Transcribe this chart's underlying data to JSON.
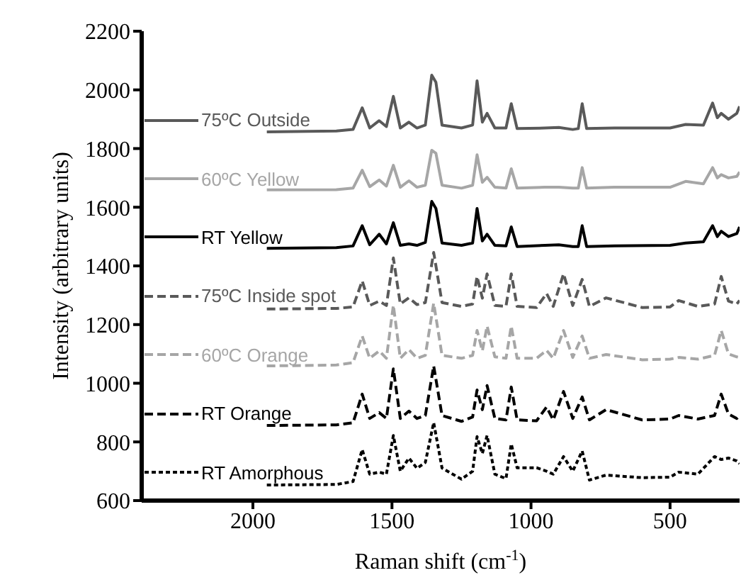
{
  "chart_data": {
    "type": "line",
    "xlabel": "Raman shift (cm$^{-1}$)",
    "ylabel": "Intensity (arbitrary units)",
    "xlim": [
      2400,
      250
    ],
    "xticks": [
      2000,
      1500,
      1000,
      500
    ],
    "ylim": [
      600,
      2200
    ],
    "yticks": [
      600,
      800,
      1000,
      1200,
      1400,
      1600,
      1800,
      2000,
      2200
    ],
    "grid": false,
    "legend": "left",
    "marker": "none",
    "series": [
      {
        "name": "75ºC Outside",
        "color": "#595959",
        "line_style": "solid",
        "x": [
          1950,
          1700,
          1640,
          1607,
          1580,
          1546,
          1520,
          1495,
          1470,
          1439,
          1410,
          1380,
          1357,
          1342,
          1320,
          1250,
          1210,
          1194,
          1175,
          1158,
          1130,
          1090,
          1071,
          1050,
          950,
          900,
          850,
          830,
          816,
          800,
          700,
          500,
          444,
          380,
          347,
          330,
          316,
          290,
          260,
          250
        ],
        "values": [
          1857,
          1860,
          1865,
          1939,
          1870,
          1895,
          1875,
          1978,
          1870,
          1890,
          1870,
          1880,
          2050,
          2026,
          1880,
          1870,
          1880,
          2031,
          1890,
          1920,
          1870,
          1870,
          1953,
          1868,
          1870,
          1872,
          1865,
          1868,
          1953,
          1868,
          1870,
          1870,
          1882,
          1880,
          1955,
          1905,
          1920,
          1900,
          1920,
          1944
        ]
      },
      {
        "name": "60ºC Yellow",
        "color": "#a6a6a6",
        "line_style": "solid",
        "x": [
          1950,
          1700,
          1640,
          1607,
          1580,
          1546,
          1520,
          1495,
          1470,
          1439,
          1410,
          1380,
          1357,
          1342,
          1320,
          1250,
          1210,
          1194,
          1175,
          1158,
          1130,
          1090,
          1071,
          1050,
          950,
          900,
          850,
          830,
          816,
          800,
          700,
          500,
          444,
          380,
          347,
          330,
          316,
          290,
          260,
          250
        ],
        "values": [
          1659,
          1660,
          1665,
          1726,
          1670,
          1693,
          1672,
          1743,
          1668,
          1690,
          1668,
          1675,
          1794,
          1784,
          1675,
          1665,
          1675,
          1779,
          1685,
          1702,
          1668,
          1665,
          1731,
          1665,
          1668,
          1668,
          1665,
          1665,
          1735,
          1665,
          1668,
          1668,
          1688,
          1680,
          1735,
          1700,
          1711,
          1700,
          1705,
          1720
        ]
      },
      {
        "name": "RT Yellow",
        "color": "#000000",
        "line_style": "solid",
        "x": [
          1950,
          1700,
          1640,
          1607,
          1580,
          1546,
          1520,
          1495,
          1470,
          1439,
          1410,
          1380,
          1357,
          1342,
          1320,
          1250,
          1210,
          1194,
          1175,
          1158,
          1130,
          1090,
          1071,
          1050,
          950,
          900,
          850,
          830,
          816,
          800,
          700,
          500,
          444,
          380,
          347,
          330,
          316,
          290,
          260,
          250
        ],
        "values": [
          1460,
          1462,
          1468,
          1537,
          1472,
          1508,
          1475,
          1547,
          1470,
          1475,
          1470,
          1480,
          1620,
          1596,
          1478,
          1470,
          1478,
          1596,
          1485,
          1508,
          1470,
          1468,
          1533,
          1466,
          1470,
          1472,
          1466,
          1466,
          1537,
          1466,
          1468,
          1470,
          1478,
          1482,
          1537,
          1500,
          1518,
          1500,
          1510,
          1533
        ]
      },
      {
        "name": "75ºC Inside spot",
        "color": "#595959",
        "line_style": "dashed",
        "x": [
          1950,
          1700,
          1640,
          1607,
          1580,
          1546,
          1520,
          1495,
          1470,
          1439,
          1410,
          1380,
          1350,
          1320,
          1250,
          1210,
          1194,
          1175,
          1158,
          1130,
          1090,
          1071,
          1050,
          980,
          944,
          920,
          883,
          850,
          816,
          790,
          730,
          600,
          500,
          469,
          400,
          340,
          316,
          290,
          260,
          250
        ],
        "values": [
          1253,
          1255,
          1260,
          1349,
          1265,
          1280,
          1265,
          1427,
          1270,
          1291,
          1268,
          1275,
          1446,
          1275,
          1262,
          1270,
          1364,
          1290,
          1373,
          1265,
          1262,
          1373,
          1262,
          1258,
          1306,
          1262,
          1373,
          1265,
          1354,
          1262,
          1291,
          1258,
          1260,
          1282,
          1262,
          1270,
          1364,
          1280,
          1270,
          1282
        ]
      },
      {
        "name": "60ºC Orange",
        "color": "#a6a6a6",
        "line_style": "dashed",
        "x": [
          1950,
          1700,
          1640,
          1607,
          1580,
          1546,
          1520,
          1495,
          1470,
          1439,
          1410,
          1380,
          1350,
          1320,
          1250,
          1210,
          1194,
          1175,
          1158,
          1130,
          1090,
          1071,
          1050,
          980,
          944,
          920,
          883,
          850,
          816,
          790,
          730,
          600,
          500,
          469,
          400,
          340,
          316,
          290,
          260,
          250
        ],
        "values": [
          1059,
          1062,
          1070,
          1161,
          1085,
          1110,
          1085,
          1266,
          1085,
          1115,
          1085,
          1095,
          1273,
          1095,
          1085,
          1095,
          1180,
          1110,
          1195,
          1090,
          1085,
          1195,
          1085,
          1085,
          1112,
          1085,
          1180,
          1088,
          1161,
          1085,
          1098,
          1080,
          1082,
          1088,
          1082,
          1095,
          1180,
          1100,
          1090,
          1088
        ]
      },
      {
        "name": "RT Orange",
        "color": "#000000",
        "line_style": "dashed",
        "x": [
          1950,
          1700,
          1640,
          1607,
          1580,
          1546,
          1520,
          1495,
          1470,
          1439,
          1410,
          1380,
          1350,
          1320,
          1250,
          1210,
          1194,
          1175,
          1158,
          1130,
          1090,
          1071,
          1050,
          980,
          944,
          920,
          883,
          850,
          816,
          790,
          730,
          600,
          500,
          469,
          400,
          340,
          316,
          290,
          260,
          250
        ],
        "values": [
          856,
          858,
          865,
          963,
          880,
          900,
          880,
          1049,
          880,
          905,
          880,
          890,
          1059,
          890,
          870,
          885,
          977,
          910,
          992,
          880,
          875,
          987,
          875,
          872,
          919,
          875,
          972,
          880,
          953,
          875,
          910,
          875,
          878,
          890,
          878,
          890,
          963,
          895,
          880,
          890
        ]
      },
      {
        "name": "RT Amorphous",
        "color": "#000000",
        "line_style": "dotted",
        "x": [
          1950,
          1700,
          1640,
          1607,
          1580,
          1546,
          1520,
          1495,
          1470,
          1439,
          1410,
          1380,
          1350,
          1320,
          1250,
          1210,
          1194,
          1175,
          1158,
          1130,
          1090,
          1071,
          1050,
          980,
          944,
          920,
          883,
          850,
          816,
          790,
          730,
          600,
          500,
          469,
          400,
          340,
          316,
          290,
          260,
          250
        ],
        "values": [
          653,
          655,
          665,
          774,
          690,
          697,
          690,
          822,
          700,
          745,
          710,
          730,
          866,
          711,
          673,
          700,
          818,
          760,
          822,
          690,
          675,
          793,
          712,
          712,
          700,
          690,
          750,
          700,
          769,
          670,
          687,
          678,
          680,
          697,
          690,
          750,
          740,
          745,
          735,
          726
        ]
      }
    ]
  }
}
